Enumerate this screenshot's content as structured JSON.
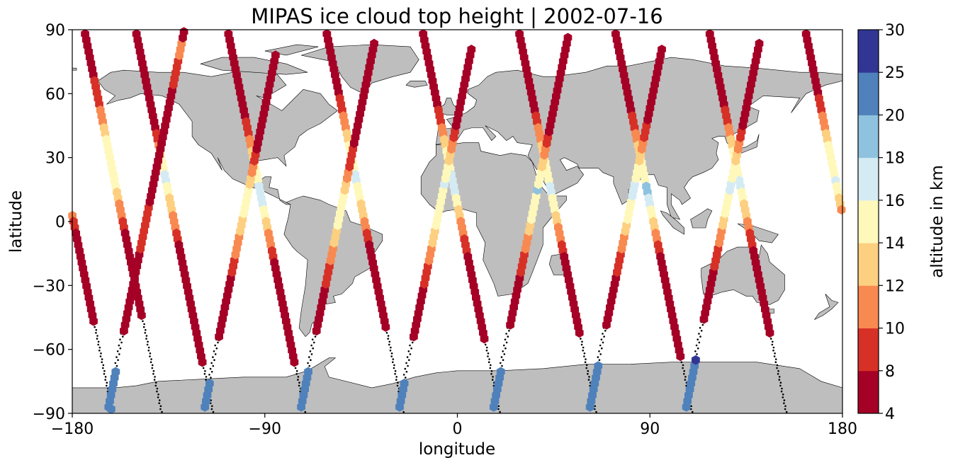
{
  "chart_data": {
    "type": "scatter",
    "title": "MIPAS ice cloud top height | 2002-07-16",
    "xlabel": "longitude",
    "ylabel": "latitude",
    "xlim": [
      -180,
      180
    ],
    "ylim": [
      -90,
      90
    ],
    "xticks": [
      -180,
      -90,
      0,
      90,
      180
    ],
    "yticks": [
      -90,
      -60,
      -30,
      0,
      30,
      60,
      90
    ],
    "xtick_labels": [
      "−180",
      "−90",
      "0",
      "90",
      "180"
    ],
    "ytick_labels": [
      "−90",
      "−60",
      "−30",
      "0",
      "30",
      "60",
      "90"
    ],
    "grid": false,
    "land_color": "#bebebe",
    "no_cloud_marker": "black dots",
    "colorbar": {
      "label": "altitude in km",
      "boundaries": [
        4,
        8,
        10,
        12,
        14,
        16,
        18,
        20,
        25,
        30
      ],
      "tick_labels": [
        "4",
        "8",
        "10",
        "12",
        "14",
        "16",
        "18",
        "20",
        "25",
        "30"
      ],
      "colors": [
        "#a50026",
        "#d73027",
        "#f46d43",
        "#fdae61",
        "#fee090",
        "#ffffbf",
        "#e0f3f8",
        "#abd9e9",
        "#74add1",
        "#4575b4",
        "#313695"
      ],
      "bin_colors": [
        "#a50026",
        "#d73027",
        "#f88950",
        "#fdcf80",
        "#fff8bb",
        "#d4ebf3",
        "#8ec2df",
        "#4f81bb",
        "#313695"
      ]
    },
    "orbits": [
      {
        "dir": "desc",
        "lon0": -174,
        "seq": "AAAAAAAABBBBBCCCDDEEEEEEEEEDDCCCBBAAAAAAAAAAAAAAA......................HHHH"
      },
      {
        "dir": "desc",
        "lon0": -150,
        "seq": "AAAAAAAAAAAAAAAAABBCDEEEFFEEDDDCCCBBAAAAAAAAAAAAAAAAAAAAA..............HHHHH"
      },
      {
        "dir": "asc",
        "lon0": -128,
        "seq": "HHHHHHH......AAAAAAAAAAAAAABBBBBBBBAAAAAAAAAAAAAAAAAAAABBBBBCCCAAAAAAAAAAA"
      },
      {
        "dir": "desc",
        "lon0": -107,
        "seq": "AAAAAAAAAAAAAAABBBCCDDEEEEFFFFEEDDCCCBBAAAAAAAAAAAAAAAAAA.............HHHHHH"
      },
      {
        "dir": "asc",
        "lon0": -83,
        "seq": "HHHHH.......AAAAAAAAAAABBBCCCCDDDEEEEEDDCCBBAAAAAAAAAAAAAAAAA"
      },
      {
        "dir": "desc",
        "lon0": -61,
        "seq": "AAAAAAAAAAABBBCCCDDEEEEEFFEEEDDDCCBBAAAAAAAAAAAAAAA...............HHHHH"
      },
      {
        "dir": "asc",
        "lon0": -38,
        "seq": "HHHHHHH......AAAAAAAABBBBCCCDDDEEEEEEDDCCBBBBAAAAAAAAAAAAAAAAAA"
      },
      {
        "dir": "desc",
        "lon0": -16,
        "seq": "AAAAAAAAAAAAABBBCCDDEEEEFFFFEEDDCCCBBBAAAAAAAAAAAAAAA..............HHHHH"
      },
      {
        "dir": "asc",
        "lon0": 8,
        "seq": "HHHHH.......AAAAAAAAABBBBCCCDDDEEEEEEEFEEEDDCCBBAAAAAAAAAAAAAA"
      },
      {
        "dir": "desc",
        "lon0": 29,
        "seq": "AAAAAAAAAAAAAABBCCCDDEEEEEFFEEEDDCCCBBAAAAAAAAAAAAAA..............HHHHHHH"
      },
      {
        "dir": "asc",
        "lon0": 52,
        "seq": "HHHHHHH.......AAAAAAAAABBBBCCCDDEEEEEGEEEDDCCBBAAAAAAAAAAAAAAAAA"
      },
      {
        "dir": "desc",
        "lon0": 74,
        "seq": "AAAAAAAAAAAAAABBBCCDDEEEEEGGFFEEDDCCBBAAAAAAAAAAAAAAAAAA..............HHHHH"
      },
      {
        "dir": "asc",
        "lon0": 97,
        "seq": "HHHHHHHH......AAAAAAAAABBBBCCCDDEEEEFFFEEEDDCCBBBAAAAAAAAAAAAA"
      },
      {
        "dir": "desc",
        "lon0": 118,
        "seq": "AAAAAAAAAAAAABBBCCDDEEEEEFFEEDDDCCBBBAAAAAAAAAAAAAAA..............HHHHHHH"
      },
      {
        "dir": "asc",
        "lon0": 142,
        "seq": "HHHHHHHHI......AAAAAAAAABBBBCCCDDEEEEFFEEEDDCCBBAAAAAAAAAAAAAAA"
      },
      {
        "dir": "desc",
        "lon0": 163,
        "seq": "AAAAAAAAAAABBBCCCDDEEEEEEFEEDDCCBBAAAAAAAAAAAAAAAA..............HHHHHH"
      }
    ]
  }
}
